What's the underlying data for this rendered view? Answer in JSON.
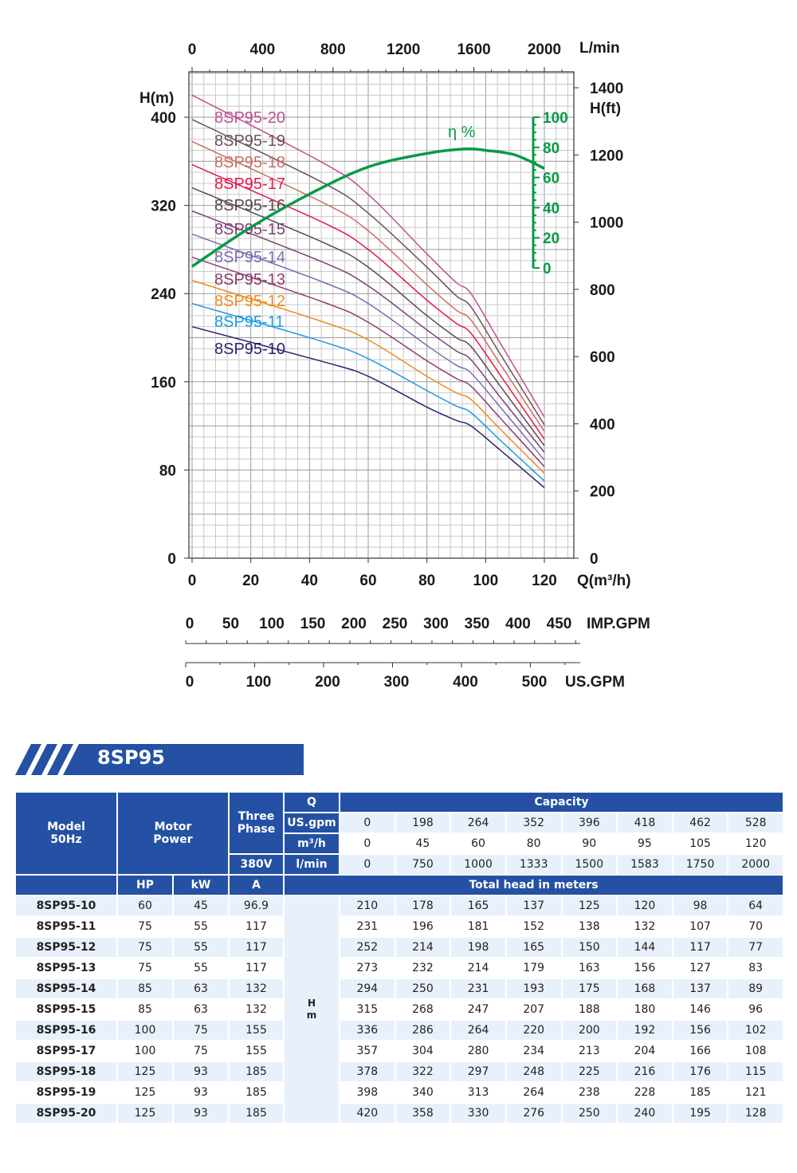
{
  "chart_data": {
    "type": "line",
    "xlabel": "Q(m³/h)",
    "ylabel_left": "H(m)",
    "ylabel_right": "H(ft)",
    "top_axis_label": "L/min",
    "efficiency_label": "η %",
    "imp_label": "IMP.GPM",
    "us_label": "US.GPM",
    "xlim": [
      0,
      120
    ],
    "ylim": [
      0,
      400
    ],
    "x_ticks": [
      0,
      20,
      40,
      60,
      80,
      100,
      120
    ],
    "y_ticks": [
      0,
      80,
      160,
      240,
      320,
      400
    ],
    "ft_ticks": [
      0,
      200,
      400,
      600,
      800,
      1000,
      1200,
      1400
    ],
    "lmin_ticks": [
      0,
      400,
      800,
      1200,
      1600,
      2000
    ],
    "eff_ticks": [
      0,
      20,
      40,
      60,
      80,
      100
    ],
    "imp_ticks": [
      0,
      50,
      100,
      150,
      200,
      250,
      300,
      350,
      400,
      450
    ],
    "us_ticks": [
      0,
      100,
      200,
      300,
      400,
      500
    ],
    "grid": true,
    "x": [
      0,
      45,
      60,
      80,
      90,
      95,
      105,
      120
    ],
    "series": [
      {
        "name": "8SP95-20",
        "color": "#c0508f",
        "values": [
          420,
          358,
          330,
          276,
          250,
          240,
          195,
          128
        ]
      },
      {
        "name": "8SP95-19",
        "color": "#6b5358",
        "values": [
          398,
          340,
          313,
          264,
          238,
          228,
          185,
          121
        ]
      },
      {
        "name": "8SP95-18",
        "color": "#c97063",
        "values": [
          378,
          322,
          297,
          248,
          225,
          216,
          176,
          115
        ]
      },
      {
        "name": "8SP95-17",
        "color": "#e5184a",
        "values": [
          357,
          304,
          280,
          234,
          213,
          204,
          166,
          108
        ]
      },
      {
        "name": "8SP95-16",
        "color": "#5a4a50",
        "values": [
          336,
          286,
          264,
          220,
          200,
          192,
          156,
          102
        ]
      },
      {
        "name": "8SP95-15",
        "color": "#7d3f78",
        "values": [
          315,
          268,
          247,
          207,
          188,
          180,
          146,
          96
        ]
      },
      {
        "name": "8SP95-14",
        "color": "#7a6db0",
        "values": [
          294,
          250,
          231,
          193,
          175,
          168,
          137,
          89
        ]
      },
      {
        "name": "8SP95-13",
        "color": "#8d3c70",
        "values": [
          273,
          232,
          214,
          179,
          163,
          156,
          127,
          83
        ]
      },
      {
        "name": "8SP95-12",
        "color": "#f08a1d",
        "values": [
          252,
          214,
          198,
          165,
          150,
          144,
          117,
          77
        ]
      },
      {
        "name": "8SP95-11",
        "color": "#1b9be0",
        "values": [
          231,
          196,
          181,
          152,
          138,
          132,
          107,
          70
        ]
      },
      {
        "name": "8SP95-10",
        "color": "#2a2270",
        "values": [
          210,
          178,
          165,
          137,
          125,
          120,
          98,
          64
        ]
      }
    ],
    "efficiency": {
      "color": "#0a9a48",
      "x": [
        0,
        20,
        40,
        60,
        80,
        93,
        100,
        110,
        120
      ],
      "values": [
        1,
        27,
        49,
        67,
        76,
        79,
        78,
        75,
        66
      ]
    }
  },
  "section": {
    "title": "8SP95",
    "color": "#2451a3"
  },
  "table": {
    "model_header": [
      "Model",
      "50Hz"
    ],
    "motor_header": [
      "Motor",
      "Power"
    ],
    "phase_header": [
      "Three",
      "Phase"
    ],
    "voltage": "380V",
    "q_label": "Q",
    "capacity_label": "Capacity",
    "unit_rows": [
      {
        "unit": "US.gpm",
        "values": [
          "0",
          "198",
          "264",
          "352",
          "396",
          "418",
          "462",
          "528"
        ]
      },
      {
        "unit": "m³/h",
        "values": [
          "0",
          "45",
          "60",
          "80",
          "90",
          "95",
          "105",
          "120"
        ]
      },
      {
        "unit": "l/min",
        "values": [
          "0",
          "750",
          "1000",
          "1333",
          "1500",
          "1583",
          "1750",
          "2000"
        ]
      }
    ],
    "sub_headers": {
      "hp": "HP",
      "kw": "kW",
      "a": "A",
      "total_head": "Total head in meters"
    },
    "h_label": [
      "H",
      "m"
    ],
    "rows": [
      {
        "model": "8SP95-10",
        "hp": "60",
        "kw": "45",
        "a": "96.9",
        "h": [
          "210",
          "178",
          "165",
          "137",
          "125",
          "120",
          "98",
          "64"
        ]
      },
      {
        "model": "8SP95-11",
        "hp": "75",
        "kw": "55",
        "a": "117",
        "h": [
          "231",
          "196",
          "181",
          "152",
          "138",
          "132",
          "107",
          "70"
        ]
      },
      {
        "model": "8SP95-12",
        "hp": "75",
        "kw": "55",
        "a": "117",
        "h": [
          "252",
          "214",
          "198",
          "165",
          "150",
          "144",
          "117",
          "77"
        ]
      },
      {
        "model": "8SP95-13",
        "hp": "75",
        "kw": "55",
        "a": "117",
        "h": [
          "273",
          "232",
          "214",
          "179",
          "163",
          "156",
          "127",
          "83"
        ]
      },
      {
        "model": "8SP95-14",
        "hp": "85",
        "kw": "63",
        "a": "132",
        "h": [
          "294",
          "250",
          "231",
          "193",
          "175",
          "168",
          "137",
          "89"
        ]
      },
      {
        "model": "8SP95-15",
        "hp": "85",
        "kw": "63",
        "a": "132",
        "h": [
          "315",
          "268",
          "247",
          "207",
          "188",
          "180",
          "146",
          "96"
        ]
      },
      {
        "model": "8SP95-16",
        "hp": "100",
        "kw": "75",
        "a": "155",
        "h": [
          "336",
          "286",
          "264",
          "220",
          "200",
          "192",
          "156",
          "102"
        ]
      },
      {
        "model": "8SP95-17",
        "hp": "100",
        "kw": "75",
        "a": "155",
        "h": [
          "357",
          "304",
          "280",
          "234",
          "213",
          "204",
          "166",
          "108"
        ]
      },
      {
        "model": "8SP95-18",
        "hp": "125",
        "kw": "93",
        "a": "185",
        "h": [
          "378",
          "322",
          "297",
          "248",
          "225",
          "216",
          "176",
          "115"
        ]
      },
      {
        "model": "8SP95-19",
        "hp": "125",
        "kw": "93",
        "a": "185",
        "h": [
          "398",
          "340",
          "313",
          "264",
          "238",
          "228",
          "185",
          "121"
        ]
      },
      {
        "model": "8SP95-20",
        "hp": "125",
        "kw": "93",
        "a": "185",
        "h": [
          "420",
          "358",
          "330",
          "276",
          "250",
          "240",
          "195",
          "128"
        ]
      }
    ]
  }
}
